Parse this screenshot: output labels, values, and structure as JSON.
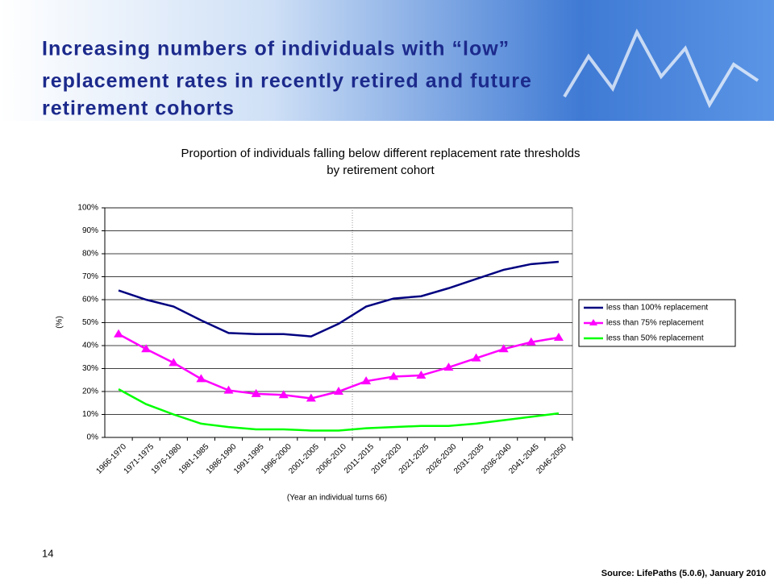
{
  "slide_title": [
    "Increasing numbers of  individuals with “low”",
    "replacement rates in recently retired and future",
    "retirement cohorts"
  ],
  "page_number": "14",
  "source": "Source:  LifePaths  (5.0.6), January 2010",
  "chart_data": {
    "type": "line",
    "title": [
      "Proportion of individuals falling below different replacement rate thresholds",
      "by retirement cohort"
    ],
    "x_label": "(Year an individual turns 66)",
    "y_label": "(%)",
    "categories": [
      "1966-1970",
      "1971-1975",
      "1976-1980",
      "1981-1985",
      "1986-1990",
      "1991-1995",
      "1996-2000",
      "2001-2005",
      "2006-2010",
      "2011-2015",
      "2016-2020",
      "2021-2025",
      "2026-2030",
      "2031-2035",
      "2036-2040",
      "2041-2045",
      "2046-2050"
    ],
    "series": [
      {
        "name": "less than 100% replacement",
        "color": "#000080",
        "marker": "none",
        "values": [
          64,
          60,
          57,
          51,
          45.5,
          45,
          45,
          44,
          49.5,
          57,
          60.5,
          61.5,
          65,
          69,
          73,
          75.5,
          76.5
        ]
      },
      {
        "name": "less than 75% replacement",
        "color": "#ff00ff",
        "marker": "triangle",
        "values": [
          45,
          38.5,
          32.5,
          25.5,
          20.5,
          19,
          18.5,
          17,
          20,
          24.5,
          26.5,
          27,
          30.5,
          34.5,
          38.5,
          41.5,
          43.5
        ]
      },
      {
        "name": "less than 50% replacement",
        "color": "#00ff00",
        "marker": "none",
        "values": [
          21,
          14.5,
          10,
          6,
          4.5,
          3.5,
          3.5,
          3,
          3,
          4,
          4.5,
          5,
          5,
          6,
          7.5,
          9,
          10.5
        ]
      }
    ],
    "ylim": [
      0,
      100
    ],
    "yticks": [
      {
        "value": 0,
        "label": "0%"
      },
      {
        "value": 10,
        "label": "10%"
      },
      {
        "value": 20,
        "label": "20%"
      },
      {
        "value": 30,
        "label": "30%"
      },
      {
        "value": 40,
        "label": "40%"
      },
      {
        "value": 50,
        "label": "50%"
      },
      {
        "value": 60,
        "label": "60%"
      },
      {
        "value": 70,
        "label": "70%"
      },
      {
        "value": 80,
        "label": "80%"
      },
      {
        "value": 90,
        "label": "90%"
      },
      {
        "value": 100,
        "label": "100%"
      }
    ],
    "grid": true,
    "legend": "right"
  }
}
